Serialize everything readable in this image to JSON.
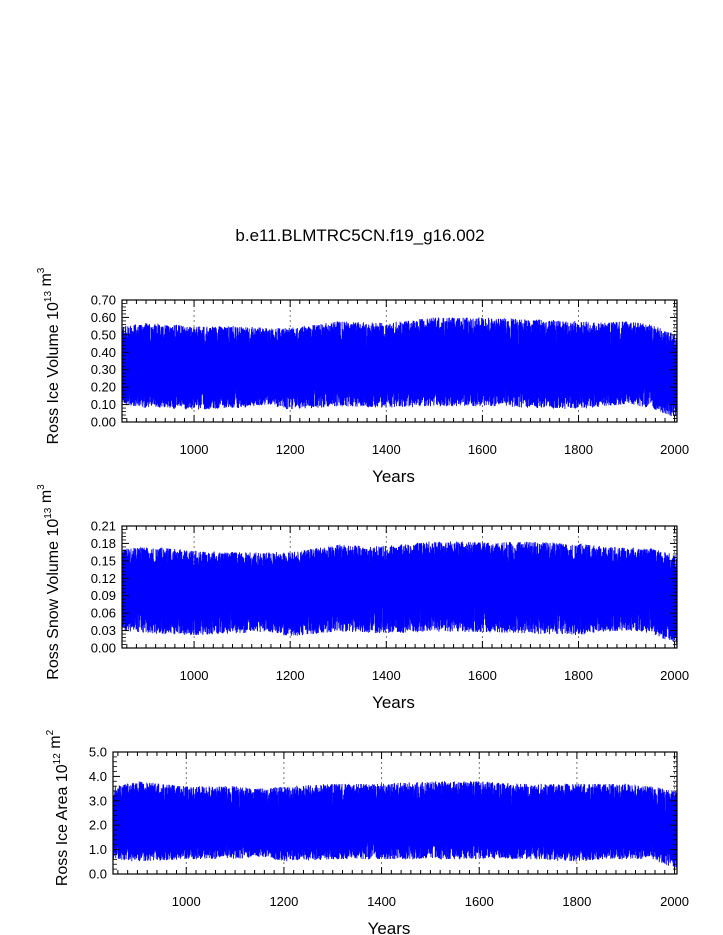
{
  "chart_data": {
    "title": "b.e11.BLMTRC5CN.f19_g16.002",
    "type": "line",
    "colors": {
      "series": "#0000ff",
      "axis": "#000000",
      "grid": "#555555"
    },
    "panels": [
      {
        "type": "line",
        "ylabel": {
          "prefix": "Ross Ice Volume 10",
          "exp": "13",
          "unit": " m",
          "unit_exp": "3"
        },
        "xlabel": "Years",
        "xlim": [
          850,
          2005
        ],
        "ylim": [
          0.0,
          0.7
        ],
        "yticks": [
          0.0,
          0.1,
          0.2,
          0.3,
          0.4,
          0.5,
          0.6,
          0.7
        ],
        "ytick_labels": [
          "0.00",
          "0.10",
          "0.20",
          "0.30",
          "0.40",
          "0.50",
          "0.60",
          "0.70"
        ],
        "xticks": [
          1000,
          1200,
          1400,
          1600,
          1800,
          2000
        ],
        "xtick_labels": [
          "1000",
          "1200",
          "1400",
          "1600",
          "1800",
          "2000"
        ],
        "grid_x": [
          1000,
          1200,
          1400,
          1600,
          1800,
          2000
        ],
        "series": {
          "name": "Ross Ice Volume",
          "x_start": 850,
          "x_end": 2005,
          "samples_per_year": 12,
          "envelope_years": [
            850,
            900,
            1000,
            1100,
            1150,
            1200,
            1300,
            1400,
            1500,
            1600,
            1700,
            1800,
            1850,
            1900,
            1950,
            2005
          ],
          "min": [
            0.1,
            0.08,
            0.07,
            0.08,
            0.1,
            0.07,
            0.09,
            0.08,
            0.09,
            0.09,
            0.08,
            0.07,
            0.09,
            0.1,
            0.08,
            0.02
          ],
          "max": [
            0.55,
            0.57,
            0.55,
            0.55,
            0.54,
            0.54,
            0.58,
            0.57,
            0.6,
            0.6,
            0.59,
            0.58,
            0.57,
            0.58,
            0.56,
            0.5
          ]
        }
      },
      {
        "type": "line",
        "ylabel": {
          "prefix": "Ross Snow Volume 10",
          "exp": "13",
          "unit": " m",
          "unit_exp": "3"
        },
        "xlabel": "Years",
        "xlim": [
          850,
          2005
        ],
        "ylim": [
          0.0,
          0.21
        ],
        "yticks": [
          0.0,
          0.03,
          0.06,
          0.09,
          0.12,
          0.15,
          0.18,
          0.21
        ],
        "ytick_labels": [
          "0.00",
          "0.03",
          "0.06",
          "0.09",
          "0.12",
          "0.15",
          "0.18",
          "0.21"
        ],
        "xticks": [
          1000,
          1200,
          1400,
          1600,
          1800,
          2000
        ],
        "xtick_labels": [
          "1000",
          "1200",
          "1400",
          "1600",
          "1800",
          "2000"
        ],
        "grid_x": [
          1000,
          1200,
          1400,
          1600,
          1800,
          2000
        ],
        "series": {
          "name": "Ross Snow Volume",
          "x_start": 850,
          "x_end": 2005,
          "samples_per_year": 12,
          "envelope_years": [
            850,
            900,
            1000,
            1100,
            1150,
            1200,
            1300,
            1400,
            1500,
            1600,
            1700,
            1800,
            1850,
            1900,
            1950,
            2005
          ],
          "min": [
            0.03,
            0.025,
            0.022,
            0.025,
            0.028,
            0.02,
            0.028,
            0.025,
            0.028,
            0.027,
            0.025,
            0.022,
            0.028,
            0.03,
            0.025,
            0.005
          ],
          "max": [
            0.17,
            0.175,
            0.168,
            0.165,
            0.165,
            0.165,
            0.178,
            0.176,
            0.185,
            0.182,
            0.183,
            0.18,
            0.175,
            0.174,
            0.172,
            0.16
          ]
        }
      },
      {
        "type": "line",
        "ylabel": {
          "prefix": "Ross Ice Area 10",
          "exp": "12",
          "unit": " m",
          "unit_exp": "2"
        },
        "xlabel": "Years",
        "xlim": [
          850,
          2005
        ],
        "ylim": [
          0.0,
          5.0
        ],
        "yticks": [
          0.0,
          1.0,
          2.0,
          3.0,
          4.0,
          5.0
        ],
        "ytick_labels": [
          "0.0",
          "1.0",
          "2.0",
          "3.0",
          "4.0",
          "5.0"
        ],
        "xticks": [
          1000,
          1200,
          1400,
          1600,
          1800,
          2000
        ],
        "xtick_labels": [
          "1000",
          "1200",
          "1400",
          "1600",
          "1800",
          "2000"
        ],
        "grid_x": [
          1000,
          1200,
          1400,
          1600,
          1800,
          2000
        ],
        "series": {
          "name": "Ross Ice Area",
          "x_start": 850,
          "x_end": 2005,
          "samples_per_year": 12,
          "envelope_years": [
            850,
            900,
            1000,
            1100,
            1150,
            1200,
            1300,
            1400,
            1500,
            1600,
            1700,
            1800,
            1850,
            1900,
            1950,
            2005
          ],
          "min": [
            0.6,
            0.5,
            0.6,
            0.6,
            0.7,
            0.5,
            0.6,
            0.6,
            0.6,
            0.6,
            0.6,
            0.5,
            0.6,
            0.6,
            0.6,
            0.2
          ],
          "max": [
            3.6,
            3.8,
            3.6,
            3.6,
            3.5,
            3.6,
            3.7,
            3.7,
            3.8,
            3.8,
            3.7,
            3.7,
            3.7,
            3.7,
            3.6,
            3.4
          ]
        }
      }
    ]
  }
}
